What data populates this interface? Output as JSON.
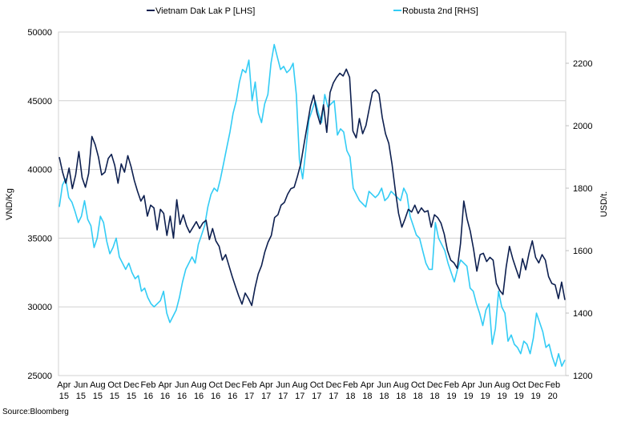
{
  "chart_data": {
    "type": "line",
    "title": "",
    "source": "Source:Bloomberg",
    "xlabel": "",
    "ylabel": "VND/Kg",
    "ylabel_right": "USD/t.",
    "ylim": [
      25000,
      50000
    ],
    "ylim_right": [
      1200,
      2300
    ],
    "yticks": [
      "25000",
      "30000",
      "35000",
      "40000",
      "45000",
      "50000"
    ],
    "yticks_right": [
      "1200",
      "1400",
      "1600",
      "1800",
      "2000",
      "2200"
    ],
    "grid": true,
    "legend_position": "top",
    "x_tick_labels": [
      [
        "Apr",
        "15"
      ],
      [
        "Jun",
        "15"
      ],
      [
        "Aug",
        "15"
      ],
      [
        "Oct",
        "15"
      ],
      [
        "Dec",
        "15"
      ],
      [
        "Feb",
        "16"
      ],
      [
        "Apr",
        "16"
      ],
      [
        "Jun",
        "16"
      ],
      [
        "Aug",
        "16"
      ],
      [
        "Oct",
        "16"
      ],
      [
        "Dec",
        "16"
      ],
      [
        "Feb",
        "17"
      ],
      [
        "Apr",
        "17"
      ],
      [
        "Jun",
        "17"
      ],
      [
        "Aug",
        "17"
      ],
      [
        "Oct",
        "17"
      ],
      [
        "Dec",
        "17"
      ],
      [
        "Feb",
        "18"
      ],
      [
        "Apr",
        "18"
      ],
      [
        "Jun",
        "18"
      ],
      [
        "Aug",
        "18"
      ],
      [
        "Oct",
        "18"
      ],
      [
        "Dec",
        "18"
      ],
      [
        "Feb",
        "19"
      ],
      [
        "Apr",
        "19"
      ],
      [
        "Jun",
        "19"
      ],
      [
        "Aug",
        "19"
      ],
      [
        "Oct",
        "19"
      ],
      [
        "Dec",
        "19"
      ],
      [
        "Feb",
        "20"
      ]
    ],
    "x_months_span": 60.2,
    "series": [
      {
        "name": "Vietnam Dak Lak P [LHS]",
        "axis": "left",
        "color": "#0d1f4f",
        "values": [
          40900,
          39800,
          39000,
          40100,
          38600,
          39600,
          41300,
          39400,
          38700,
          39700,
          42400,
          41800,
          40900,
          39600,
          39800,
          40800,
          41100,
          40300,
          39000,
          40400,
          39800,
          41000,
          40200,
          39200,
          38400,
          37700,
          38100,
          36600,
          37400,
          37200,
          35600,
          37100,
          36800,
          35200,
          36600,
          35000,
          37800,
          36000,
          36700,
          35900,
          35400,
          35800,
          36200,
          35700,
          36100,
          36300,
          34900,
          35700,
          34800,
          34400,
          33400,
          33800,
          33000,
          32200,
          31500,
          30800,
          30200,
          31000,
          30600,
          30100,
          31400,
          32400,
          33000,
          34000,
          34700,
          35200,
          36500,
          36700,
          37400,
          37600,
          38200,
          38600,
          38700,
          39500,
          40400,
          41800,
          43200,
          44600,
          45400,
          44100,
          43300,
          44700,
          42700,
          45600,
          46300,
          46700,
          47000,
          46800,
          47300,
          46700,
          42800,
          42300,
          43700,
          42600,
          43200,
          44400,
          45600,
          45800,
          45500,
          43800,
          42600,
          41900,
          40400,
          38500,
          36800,
          35800,
          36400,
          37100,
          36900,
          37400,
          36800,
          37200,
          36900,
          37000,
          35800,
          36700,
          36500,
          36100,
          35300,
          34100,
          33400,
          33200,
          32800,
          34600,
          37700,
          36400,
          35500,
          34200,
          32600,
          33800,
          33900,
          33300,
          33600,
          33400,
          31700,
          31200,
          30900,
          32900,
          34400,
          33500,
          32800,
          32100,
          33500,
          32700,
          33900,
          34800,
          33600,
          33200,
          33800,
          33400,
          32200,
          31700,
          31600,
          30600,
          31800,
          30500
        ]
      },
      {
        "name": "Robusta 2nd [RHS]",
        "axis": "right",
        "color": "#33ccf5",
        "values": [
          1740,
          1810,
          1830,
          1770,
          1755,
          1725,
          1690,
          1710,
          1760,
          1700,
          1680,
          1610,
          1640,
          1710,
          1690,
          1630,
          1590,
          1610,
          1640,
          1580,
          1560,
          1540,
          1560,
          1530,
          1510,
          1520,
          1470,
          1480,
          1450,
          1430,
          1420,
          1430,
          1440,
          1470,
          1400,
          1370,
          1390,
          1410,
          1450,
          1500,
          1540,
          1560,
          1580,
          1560,
          1620,
          1650,
          1680,
          1740,
          1780,
          1800,
          1790,
          1830,
          1880,
          1930,
          1980,
          2040,
          2080,
          2140,
          2180,
          2170,
          2210,
          2080,
          2140,
          2040,
          2010,
          2070,
          2100,
          2200,
          2260,
          2220,
          2180,
          2190,
          2170,
          2180,
          2200,
          2100,
          1890,
          1830,
          1920,
          2020,
          2050,
          2080,
          2040,
          2010,
          2100,
          2060,
          2070,
          2080,
          1970,
          1990,
          1980,
          1920,
          1900,
          1800,
          1780,
          1760,
          1750,
          1740,
          1790,
          1780,
          1770,
          1780,
          1800,
          1760,
          1770,
          1790,
          1780,
          1770,
          1760,
          1800,
          1780,
          1710,
          1680,
          1650,
          1640,
          1600,
          1560,
          1540,
          1540,
          1690,
          1640,
          1620,
          1600,
          1560,
          1530,
          1500,
          1540,
          1570,
          1560,
          1550,
          1480,
          1470,
          1430,
          1400,
          1360,
          1410,
          1430,
          1300,
          1350,
          1470,
          1420,
          1400,
          1310,
          1330,
          1300,
          1290,
          1270,
          1310,
          1300,
          1270,
          1320,
          1400,
          1370,
          1340,
          1290,
          1300,
          1260,
          1230,
          1270,
          1230,
          1250
        ]
      }
    ]
  }
}
